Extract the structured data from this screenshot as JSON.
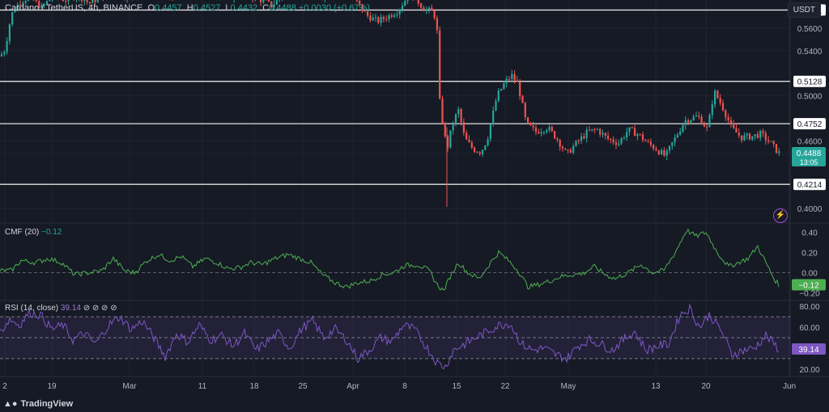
{
  "header": {
    "symbol": "Cardano / TetherUS, 4h, BINANCE",
    "o_label": "O",
    "o": "0.4457",
    "h_label": "H",
    "h": "0.4527",
    "l_label": "L",
    "l": "0.4432",
    "c_label": "C",
    "c": "0.4488",
    "change": "+0.0030 (+0.67%)"
  },
  "currency_button": "USDT",
  "brand": "TradingView",
  "icons": [
    "tradingview-logo-icon",
    "lightning-icon"
  ],
  "colors": {
    "background": "#161a25",
    "up": "#26a69a",
    "down": "#ef5350",
    "cmf": "#4caf50",
    "rsi": "#7e57c2",
    "level": "#e0e0e0"
  },
  "chart_data": [
    {
      "type": "candlestick",
      "name": "price",
      "yticks": [
        "0.5761",
        "0.5600",
        "0.5400",
        "0.5128",
        "0.5000",
        "0.4752",
        "0.4600",
        "0.4488",
        "0.4214",
        "0.4000"
      ],
      "ylim": [
        0.39,
        0.585
      ],
      "horizontal_levels": [
        0.5761,
        0.5128,
        0.4752,
        0.4214
      ],
      "last_price": "0.4488",
      "countdown": "13:05",
      "x_tick_labels": [
        "2",
        "19",
        "Mar",
        "11",
        "18",
        "25",
        "Apr",
        "8",
        "15",
        "22",
        "May",
        "13",
        "20",
        "Jun"
      ],
      "anchors": [
        [
          0,
          0.535
        ],
        [
          6,
          0.541
        ],
        [
          14,
          0.572
        ],
        [
          24,
          0.583
        ],
        [
          36,
          0.588
        ],
        [
          52,
          0.578
        ],
        [
          66,
          0.59
        ],
        [
          80,
          0.585
        ],
        [
          96,
          0.59
        ],
        [
          110,
          0.582
        ],
        [
          124,
          0.588
        ],
        [
          142,
          0.592
        ],
        [
          160,
          0.588
        ],
        [
          176,
          0.592
        ],
        [
          196,
          0.59
        ],
        [
          210,
          0.588
        ],
        [
          226,
          0.592
        ],
        [
          246,
          0.59
        ],
        [
          262,
          0.592
        ],
        [
          282,
          0.588
        ],
        [
          300,
          0.592
        ],
        [
          320,
          0.586
        ],
        [
          336,
          0.58
        ],
        [
          350,
          0.59
        ],
        [
          370,
          0.592
        ],
        [
          392,
          0.588
        ],
        [
          410,
          0.592
        ],
        [
          426,
          0.59
        ],
        [
          440,
          0.584
        ],
        [
          452,
          0.572
        ],
        [
          466,
          0.566
        ],
        [
          478,
          0.57
        ],
        [
          492,
          0.576
        ],
        [
          506,
          0.591
        ],
        [
          514,
          0.586
        ],
        [
          524,
          0.577
        ],
        [
          536,
          0.574
        ],
        [
          540,
          0.556
        ],
        [
          542,
          0.501
        ],
        [
          546,
          0.48
        ],
        [
          552,
          0.452
        ],
        [
          558,
          0.472
        ],
        [
          566,
          0.488
        ],
        [
          574,
          0.462
        ],
        [
          584,
          0.453
        ],
        [
          594,
          0.45
        ],
        [
          602,
          0.462
        ],
        [
          614,
          0.5
        ],
        [
          624,
          0.512
        ],
        [
          632,
          0.518
        ],
        [
          640,
          0.51
        ],
        [
          650,
          0.475
        ],
        [
          662,
          0.468
        ],
        [
          676,
          0.472
        ],
        [
          688,
          0.462
        ],
        [
          700,
          0.448
        ],
        [
          712,
          0.458
        ],
        [
          726,
          0.468
        ],
        [
          738,
          0.47
        ],
        [
          750,
          0.462
        ],
        [
          764,
          0.458
        ],
        [
          776,
          0.47
        ],
        [
          788,
          0.466
        ],
        [
          800,
          0.458
        ],
        [
          812,
          0.452
        ],
        [
          822,
          0.446
        ],
        [
          832,
          0.46
        ],
        [
          846,
          0.478
        ],
        [
          862,
          0.482
        ],
        [
          874,
          0.47
        ],
        [
          882,
          0.504
        ],
        [
          892,
          0.491
        ],
        [
          904,
          0.471
        ],
        [
          916,
          0.463
        ],
        [
          928,
          0.464
        ],
        [
          940,
          0.466
        ],
        [
          952,
          0.458
        ],
        [
          962,
          0.449
        ]
      ]
    },
    {
      "type": "line",
      "name": "CMF (20)",
      "value": "−0.12",
      "yticks": [
        "0.40",
        "0.20",
        "0.00",
        "−0.20"
      ],
      "ylim": [
        -0.26,
        0.46
      ],
      "anchors": [
        [
          0,
          0.02
        ],
        [
          14,
          0.02
        ],
        [
          26,
          0.12
        ],
        [
          44,
          0.1
        ],
        [
          60,
          0.14
        ],
        [
          76,
          0.1
        ],
        [
          92,
          -0.02
        ],
        [
          110,
          0.0
        ],
        [
          126,
          0.02
        ],
        [
          140,
          0.14
        ],
        [
          154,
          0.02
        ],
        [
          166,
          0.0
        ],
        [
          182,
          0.12
        ],
        [
          196,
          0.18
        ],
        [
          210,
          0.12
        ],
        [
          224,
          0.16
        ],
        [
          238,
          0.06
        ],
        [
          254,
          0.14
        ],
        [
          268,
          0.1
        ],
        [
          282,
          0.04
        ],
        [
          296,
          0.05
        ],
        [
          310,
          0.1
        ],
        [
          324,
          0.08
        ],
        [
          340,
          0.14
        ],
        [
          356,
          0.18
        ],
        [
          370,
          0.14
        ],
        [
          384,
          0.1
        ],
        [
          398,
          -0.02
        ],
        [
          414,
          -0.1
        ],
        [
          428,
          -0.14
        ],
        [
          442,
          -0.1
        ],
        [
          458,
          -0.08
        ],
        [
          472,
          -0.02
        ],
        [
          486,
          0.0
        ],
        [
          500,
          0.07
        ],
        [
          516,
          0.08
        ],
        [
          530,
          0.02
        ],
        [
          540,
          -0.12
        ],
        [
          548,
          -0.18
        ],
        [
          556,
          -0.04
        ],
        [
          566,
          0.1
        ],
        [
          578,
          0.0
        ],
        [
          592,
          -0.06
        ],
        [
          606,
          0.1
        ],
        [
          616,
          0.2
        ],
        [
          628,
          0.12
        ],
        [
          640,
          0.02
        ],
        [
          652,
          -0.14
        ],
        [
          664,
          -0.12
        ],
        [
          680,
          -0.08
        ],
        [
          692,
          -0.04
        ],
        [
          706,
          -0.02
        ],
        [
          720,
          -0.01
        ],
        [
          734,
          0.06
        ],
        [
          748,
          -0.02
        ],
        [
          760,
          -0.06
        ],
        [
          776,
          0.0
        ],
        [
          792,
          0.08
        ],
        [
          806,
          0.0
        ],
        [
          820,
          0.02
        ],
        [
          834,
          0.2
        ],
        [
          848,
          0.42
        ],
        [
          860,
          0.36
        ],
        [
          872,
          0.4
        ],
        [
          886,
          0.2
        ],
        [
          900,
          0.06
        ],
        [
          912,
          0.1
        ],
        [
          924,
          0.14
        ],
        [
          936,
          0.26
        ],
        [
          946,
          0.1
        ],
        [
          956,
          -0.06
        ],
        [
          962,
          -0.12
        ]
      ]
    },
    {
      "type": "line",
      "name": "RSI (14, close)",
      "value": "39.14",
      "yticks": [
        "80.00",
        "60.00",
        "40.00",
        "20.00"
      ],
      "ylim": [
        16,
        84
      ],
      "bands": [
        70,
        50,
        30
      ],
      "anchors": [
        [
          0,
          55
        ],
        [
          12,
          68
        ],
        [
          24,
          62
        ],
        [
          36,
          74
        ],
        [
          50,
          72
        ],
        [
          64,
          58
        ],
        [
          78,
          62
        ],
        [
          90,
          48
        ],
        [
          104,
          54
        ],
        [
          118,
          44
        ],
        [
          134,
          62
        ],
        [
          148,
          70
        ],
        [
          162,
          58
        ],
        [
          176,
          66
        ],
        [
          190,
          50
        ],
        [
          204,
          32
        ],
        [
          218,
          54
        ],
        [
          232,
          46
        ],
        [
          246,
          62
        ],
        [
          260,
          48
        ],
        [
          274,
          52
        ],
        [
          288,
          42
        ],
        [
          302,
          54
        ],
        [
          316,
          38
        ],
        [
          330,
          46
        ],
        [
          344,
          54
        ],
        [
          358,
          40
        ],
        [
          372,
          58
        ],
        [
          386,
          66
        ],
        [
          400,
          50
        ],
        [
          414,
          58
        ],
        [
          428,
          48
        ],
        [
          442,
          30
        ],
        [
          456,
          38
        ],
        [
          470,
          50
        ],
        [
          484,
          46
        ],
        [
          498,
          62
        ],
        [
          512,
          58
        ],
        [
          526,
          42
        ],
        [
          540,
          26
        ],
        [
          550,
          22
        ],
        [
          560,
          38
        ],
        [
          574,
          44
        ],
        [
          588,
          50
        ],
        [
          602,
          56
        ],
        [
          616,
          62
        ],
        [
          630,
          64
        ],
        [
          644,
          44
        ],
        [
          658,
          38
        ],
        [
          672,
          40
        ],
        [
          686,
          34
        ],
        [
          700,
          30
        ],
        [
          714,
          42
        ],
        [
          728,
          48
        ],
        [
          742,
          44
        ],
        [
          756,
          38
        ],
        [
          770,
          48
        ],
        [
          784,
          56
        ],
        [
          798,
          38
        ],
        [
          812,
          42
        ],
        [
          826,
          44
        ],
        [
          840,
          72
        ],
        [
          852,
          78
        ],
        [
          864,
          60
        ],
        [
          876,
          72
        ],
        [
          890,
          58
        ],
        [
          904,
          34
        ],
        [
          918,
          38
        ],
        [
          932,
          40
        ],
        [
          946,
          52
        ],
        [
          956,
          44
        ],
        [
          962,
          39
        ]
      ]
    }
  ]
}
